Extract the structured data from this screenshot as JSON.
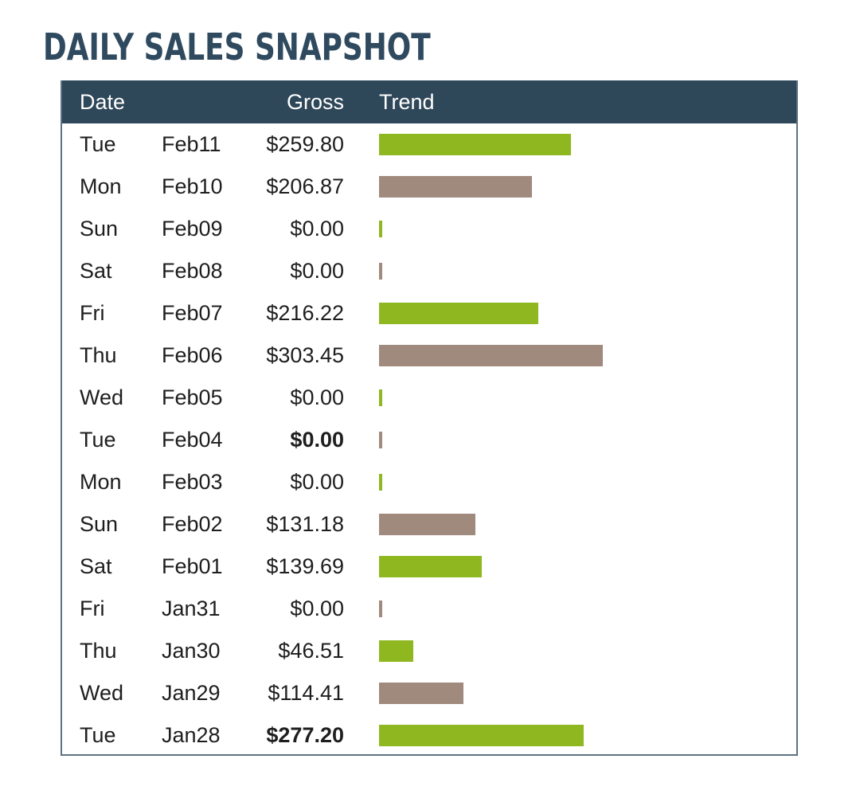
{
  "title": "DAILY SALES SNAPSHOT",
  "colors": {
    "header_bg": "#2e4759",
    "title": "#2f4a5f",
    "bar_green": "#8fb820",
    "bar_taupe": "#a08a7e"
  },
  "table": {
    "headers": {
      "date": "Date",
      "gross": "Gross",
      "trend": "Trend"
    },
    "rows": [
      {
        "day": "Tue",
        "date": "Feb11",
        "gross": "$259.80",
        "value": 259.8,
        "bold": false,
        "bar_color": "green"
      },
      {
        "day": "Mon",
        "date": "Feb10",
        "gross": "$206.87",
        "value": 206.87,
        "bold": false,
        "bar_color": "taupe"
      },
      {
        "day": "Sun",
        "date": "Feb09",
        "gross": "$0.00",
        "value": 0,
        "bold": false,
        "bar_color": "green"
      },
      {
        "day": "Sat",
        "date": "Feb08",
        "gross": "$0.00",
        "value": 0,
        "bold": false,
        "bar_color": "taupe"
      },
      {
        "day": "Fri",
        "date": "Feb07",
        "gross": "$216.22",
        "value": 216.22,
        "bold": false,
        "bar_color": "green"
      },
      {
        "day": "Thu",
        "date": "Feb06",
        "gross": "$303.45",
        "value": 303.45,
        "bold": false,
        "bar_color": "taupe"
      },
      {
        "day": "Wed",
        "date": "Feb05",
        "gross": "$0.00",
        "value": 0,
        "bold": false,
        "bar_color": "green"
      },
      {
        "day": "Tue",
        "date": "Feb04",
        "gross": "$0.00",
        "value": 0,
        "bold": true,
        "bar_color": "taupe"
      },
      {
        "day": "Mon",
        "date": "Feb03",
        "gross": "$0.00",
        "value": 0,
        "bold": false,
        "bar_color": "green"
      },
      {
        "day": "Sun",
        "date": "Feb02",
        "gross": "$131.18",
        "value": 131.18,
        "bold": false,
        "bar_color": "taupe"
      },
      {
        "day": "Sat",
        "date": "Feb01",
        "gross": "$139.69",
        "value": 139.69,
        "bold": false,
        "bar_color": "green"
      },
      {
        "day": "Fri",
        "date": "Jan31",
        "gross": "$0.00",
        "value": 0,
        "bold": false,
        "bar_color": "taupe"
      },
      {
        "day": "Thu",
        "date": "Jan30",
        "gross": "$46.51",
        "value": 46.51,
        "bold": false,
        "bar_color": "green"
      },
      {
        "day": "Wed",
        "date": "Jan29",
        "gross": "$114.41",
        "value": 114.41,
        "bold": false,
        "bar_color": "taupe"
      },
      {
        "day": "Tue",
        "date": "Jan28",
        "gross": "$277.20",
        "value": 277.2,
        "bold": true,
        "bar_color": "green"
      }
    ]
  }
}
